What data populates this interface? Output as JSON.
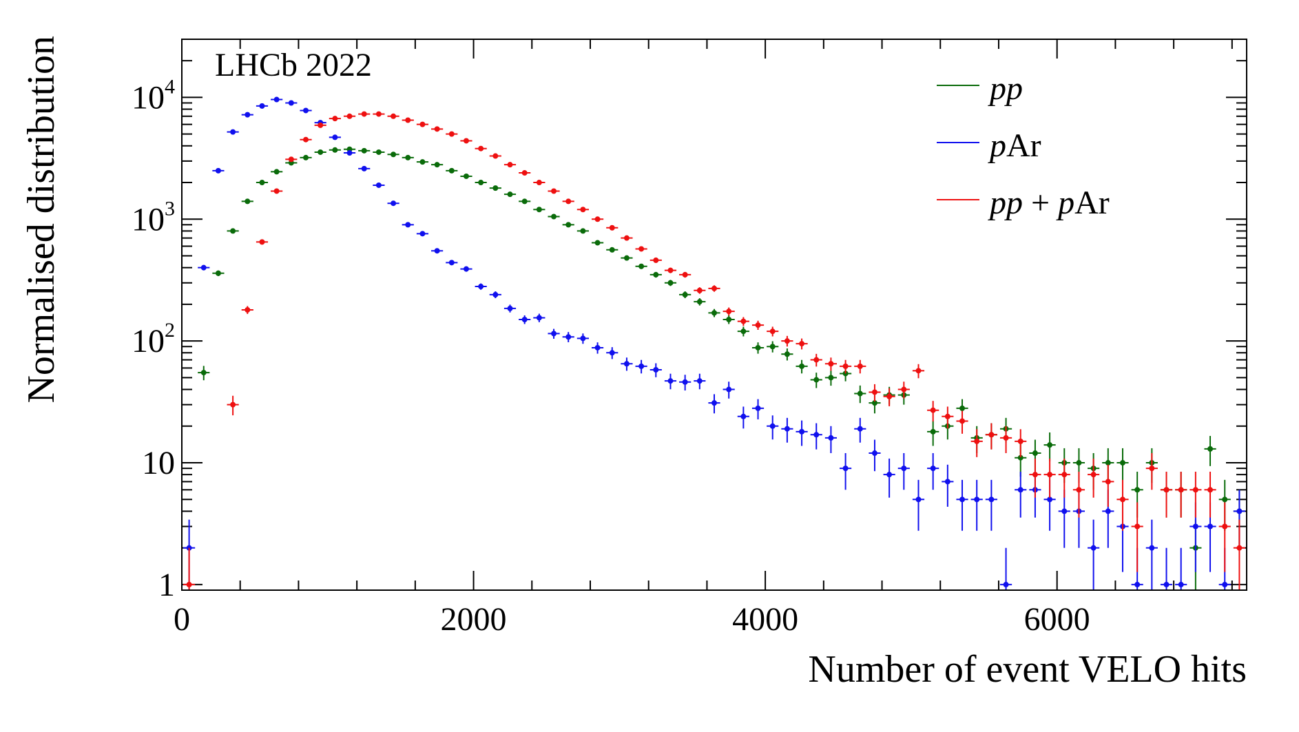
{
  "chart_data": {
    "type": "scatter",
    "title": "",
    "annotation": "LHCb 2022",
    "xlabel": "Number of event VELO hits",
    "ylabel": "Normalised distribution",
    "xlim": [
      0,
      7300
    ],
    "ylim": [
      0.9,
      30000
    ],
    "yscale": "log",
    "bin_width": 100,
    "x_ticks": [
      {
        "value": 0,
        "label": "0"
      },
      {
        "value": 2000,
        "label": "2000"
      },
      {
        "value": 4000,
        "label": "4000"
      },
      {
        "value": 6000,
        "label": "6000"
      }
    ],
    "y_ticks": [
      {
        "value": 1,
        "base": "1",
        "exp": ""
      },
      {
        "value": 10,
        "base": "10",
        "exp": ""
      },
      {
        "value": 100,
        "base": "10",
        "exp": "2"
      },
      {
        "value": 1000,
        "base": "10",
        "exp": "3"
      },
      {
        "value": 10000,
        "base": "10",
        "exp": "4"
      }
    ],
    "legend_position": "top-right",
    "series": [
      {
        "key": "pp",
        "name": "pp",
        "legend": [
          {
            "text": "pp",
            "italic": true
          }
        ],
        "color": "#0a6b0a",
        "points": [
          [
            150,
            55
          ],
          [
            250,
            360
          ],
          [
            350,
            800
          ],
          [
            450,
            1400
          ],
          [
            550,
            2000
          ],
          [
            650,
            2450
          ],
          [
            750,
            2900
          ],
          [
            850,
            3200
          ],
          [
            950,
            3550
          ],
          [
            1050,
            3700
          ],
          [
            1150,
            3750
          ],
          [
            1250,
            3650
          ],
          [
            1350,
            3550
          ],
          [
            1450,
            3400
          ],
          [
            1550,
            3200
          ],
          [
            1650,
            2950
          ],
          [
            1750,
            2800
          ],
          [
            1850,
            2500
          ],
          [
            1950,
            2250
          ],
          [
            2050,
            2000
          ],
          [
            2150,
            1800
          ],
          [
            2250,
            1600
          ],
          [
            2350,
            1400
          ],
          [
            2450,
            1200
          ],
          [
            2550,
            1050
          ],
          [
            2650,
            900
          ],
          [
            2750,
            800
          ],
          [
            2850,
            640
          ],
          [
            2950,
            560
          ],
          [
            3050,
            480
          ],
          [
            3150,
            410
          ],
          [
            3250,
            350
          ],
          [
            3350,
            300
          ],
          [
            3450,
            240
          ],
          [
            3550,
            210
          ],
          [
            3650,
            170
          ],
          [
            3750,
            150
          ],
          [
            3850,
            120
          ],
          [
            3950,
            88
          ],
          [
            4050,
            90
          ],
          [
            4150,
            78
          ],
          [
            4250,
            62
          ],
          [
            4350,
            48
          ],
          [
            4450,
            50
          ],
          [
            4550,
            54
          ],
          [
            4650,
            37
          ],
          [
            4750,
            31
          ],
          [
            4850,
            36
          ],
          [
            4950,
            36
          ],
          [
            5150,
            18
          ],
          [
            5250,
            20
          ],
          [
            5350,
            28
          ],
          [
            5450,
            16
          ],
          [
            5550,
            17
          ],
          [
            5650,
            19
          ],
          [
            5750,
            11
          ],
          [
            5850,
            12
          ],
          [
            5950,
            14
          ],
          [
            6050,
            10
          ],
          [
            6150,
            10
          ],
          [
            6250,
            9
          ],
          [
            6350,
            10
          ],
          [
            6450,
            10
          ],
          [
            6550,
            6
          ],
          [
            6650,
            10
          ],
          [
            6750,
            6
          ],
          [
            6850,
            6
          ],
          [
            6950,
            2
          ],
          [
            7050,
            13
          ],
          [
            7150,
            5
          ],
          [
            7250,
            4
          ]
        ]
      },
      {
        "key": "pAr",
        "name": "pAr",
        "legend": [
          {
            "text": "p",
            "italic": true
          },
          {
            "text": "Ar",
            "italic": false
          }
        ],
        "color": "#1010ee",
        "points": [
          [
            50,
            2
          ],
          [
            150,
            400
          ],
          [
            250,
            2500
          ],
          [
            350,
            5200
          ],
          [
            450,
            7200
          ],
          [
            550,
            8500
          ],
          [
            650,
            9600
          ],
          [
            750,
            9000
          ],
          [
            850,
            7800
          ],
          [
            950,
            6200
          ],
          [
            1050,
            4700
          ],
          [
            1150,
            3500
          ],
          [
            1250,
            2600
          ],
          [
            1350,
            1900
          ],
          [
            1450,
            1350
          ],
          [
            1550,
            900
          ],
          [
            1650,
            760
          ],
          [
            1750,
            550
          ],
          [
            1850,
            440
          ],
          [
            1950,
            390
          ],
          [
            2050,
            280
          ],
          [
            2150,
            240
          ],
          [
            2250,
            185
          ],
          [
            2350,
            150
          ],
          [
            2450,
            155
          ],
          [
            2550,
            115
          ],
          [
            2650,
            108
          ],
          [
            2750,
            105
          ],
          [
            2850,
            88
          ],
          [
            2950,
            80
          ],
          [
            3050,
            65
          ],
          [
            3150,
            62
          ],
          [
            3250,
            58
          ],
          [
            3350,
            47
          ],
          [
            3450,
            46
          ],
          [
            3550,
            47
          ],
          [
            3650,
            31
          ],
          [
            3750,
            40
          ],
          [
            3850,
            24
          ],
          [
            3950,
            28
          ],
          [
            4050,
            20
          ],
          [
            4150,
            19
          ],
          [
            4250,
            18
          ],
          [
            4350,
            17
          ],
          [
            4450,
            16
          ],
          [
            4550,
            9
          ],
          [
            4650,
            19
          ],
          [
            4750,
            12
          ],
          [
            4850,
            8
          ],
          [
            4950,
            9
          ],
          [
            5050,
            5
          ],
          [
            5150,
            9
          ],
          [
            5250,
            7
          ],
          [
            5350,
            5
          ],
          [
            5450,
            5
          ],
          [
            5550,
            5
          ],
          [
            5650,
            1
          ],
          [
            5750,
            6
          ],
          [
            5850,
            6
          ],
          [
            5950,
            5
          ],
          [
            6050,
            4
          ],
          [
            6150,
            4
          ],
          [
            6250,
            2
          ],
          [
            6350,
            4
          ],
          [
            6450,
            3
          ],
          [
            6550,
            1
          ],
          [
            6650,
            2
          ],
          [
            6750,
            1
          ],
          [
            6850,
            1
          ],
          [
            6950,
            3
          ],
          [
            7050,
            3
          ],
          [
            7150,
            1
          ],
          [
            7250,
            4
          ]
        ]
      },
      {
        "key": "pp_pAr",
        "name": "pp + pAr",
        "legend": [
          {
            "text": "pp",
            "italic": true
          },
          {
            "text": " + ",
            "italic": false
          },
          {
            "text": "p",
            "italic": true
          },
          {
            "text": "Ar",
            "italic": false
          }
        ],
        "color": "#ee1010",
        "points": [
          [
            50,
            1
          ],
          [
            350,
            30
          ],
          [
            450,
            180
          ],
          [
            550,
            650
          ],
          [
            650,
            1700
          ],
          [
            750,
            3100
          ],
          [
            850,
            4500
          ],
          [
            950,
            5900
          ],
          [
            1050,
            6700
          ],
          [
            1150,
            7000
          ],
          [
            1250,
            7300
          ],
          [
            1350,
            7300
          ],
          [
            1450,
            7000
          ],
          [
            1550,
            6500
          ],
          [
            1650,
            6000
          ],
          [
            1750,
            5500
          ],
          [
            1850,
            5000
          ],
          [
            1950,
            4400
          ],
          [
            2050,
            3800
          ],
          [
            2150,
            3300
          ],
          [
            2250,
            2800
          ],
          [
            2350,
            2400
          ],
          [
            2450,
            2000
          ],
          [
            2550,
            1700
          ],
          [
            2650,
            1400
          ],
          [
            2750,
            1200
          ],
          [
            2850,
            1000
          ],
          [
            2950,
            850
          ],
          [
            3050,
            700
          ],
          [
            3150,
            570
          ],
          [
            3250,
            460
          ],
          [
            3350,
            380
          ],
          [
            3450,
            350
          ],
          [
            3550,
            260
          ],
          [
            3650,
            270
          ],
          [
            3750,
            175
          ],
          [
            3850,
            145
          ],
          [
            3950,
            135
          ],
          [
            4050,
            120
          ],
          [
            4150,
            100
          ],
          [
            4250,
            95
          ],
          [
            4350,
            70
          ],
          [
            4450,
            65
          ],
          [
            4550,
            62
          ],
          [
            4650,
            62
          ],
          [
            4750,
            38
          ],
          [
            4850,
            35
          ],
          [
            4950,
            40
          ],
          [
            5050,
            57
          ],
          [
            5150,
            27
          ],
          [
            5250,
            24
          ],
          [
            5350,
            22
          ],
          [
            5450,
            15
          ],
          [
            5550,
            17
          ],
          [
            5650,
            16
          ],
          [
            5750,
            15
          ],
          [
            5850,
            8
          ],
          [
            5950,
            8
          ],
          [
            6050,
            8
          ],
          [
            6150,
            6
          ],
          [
            6250,
            8
          ],
          [
            6350,
            7
          ],
          [
            6450,
            5
          ],
          [
            6550,
            3
          ],
          [
            6650,
            9
          ],
          [
            6750,
            6
          ],
          [
            6850,
            6
          ],
          [
            6950,
            6
          ],
          [
            7050,
            6
          ],
          [
            7150,
            3
          ],
          [
            7250,
            2
          ]
        ]
      }
    ]
  }
}
